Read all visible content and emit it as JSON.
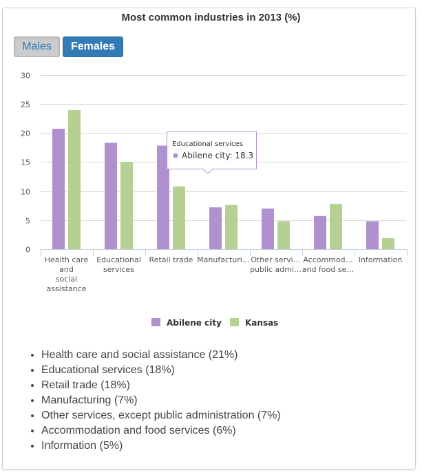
{
  "title": "Most common industries in 2013 (%)",
  "toggle": {
    "males_label": "Males",
    "females_label": "Females",
    "active": "Females"
  },
  "tooltip": {
    "header": "Educational services",
    "series": "Abilene city",
    "value": "18.3",
    "text": "Abilene city: 18.3"
  },
  "summary_list": [
    "Health care and social assistance (21%)",
    "Educational services (18%)",
    "Retail trade (18%)",
    "Manufacturing (7%)",
    "Other services, except public administration (7%)",
    "Accommodation and food services (6%)",
    "Information (5%)"
  ],
  "colors": {
    "abilene": "#b091cf",
    "kansas": "#b6d094",
    "active_button": "#337ab7",
    "inactive_button": "#cccccc"
  },
  "chart_data": {
    "type": "bar",
    "title": "Most common industries in 2013 (%)",
    "xlabel": "",
    "ylabel": "",
    "ylim": [
      0,
      30
    ],
    "yticks": [
      0,
      5,
      10,
      15,
      20,
      25,
      30
    ],
    "grid": true,
    "legend_position": "bottom",
    "categories": [
      "Health care and social assistance",
      "Educational services",
      "Retail trade",
      "Manufacturing",
      "Other services, except public administration",
      "Accommodation and food services",
      "Information"
    ],
    "category_tick_labels": [
      [
        "Health care",
        "and",
        "social",
        "assistance"
      ],
      [
        "Educational",
        "services"
      ],
      [
        "Retail trade"
      ],
      [
        "Manufacturi…"
      ],
      [
        "Other servi…",
        "public admi…"
      ],
      [
        "Accommod…",
        "and food se…"
      ],
      [
        "Information"
      ]
    ],
    "series": [
      {
        "name": "Abilene city",
        "color": "#b091cf",
        "values": [
          20.7,
          18.3,
          17.8,
          7.2,
          7.0,
          5.7,
          4.8
        ]
      },
      {
        "name": "Kansas",
        "color": "#b6d094",
        "values": [
          23.9,
          15.0,
          10.8,
          7.6,
          4.8,
          7.8,
          1.9
        ]
      }
    ]
  }
}
